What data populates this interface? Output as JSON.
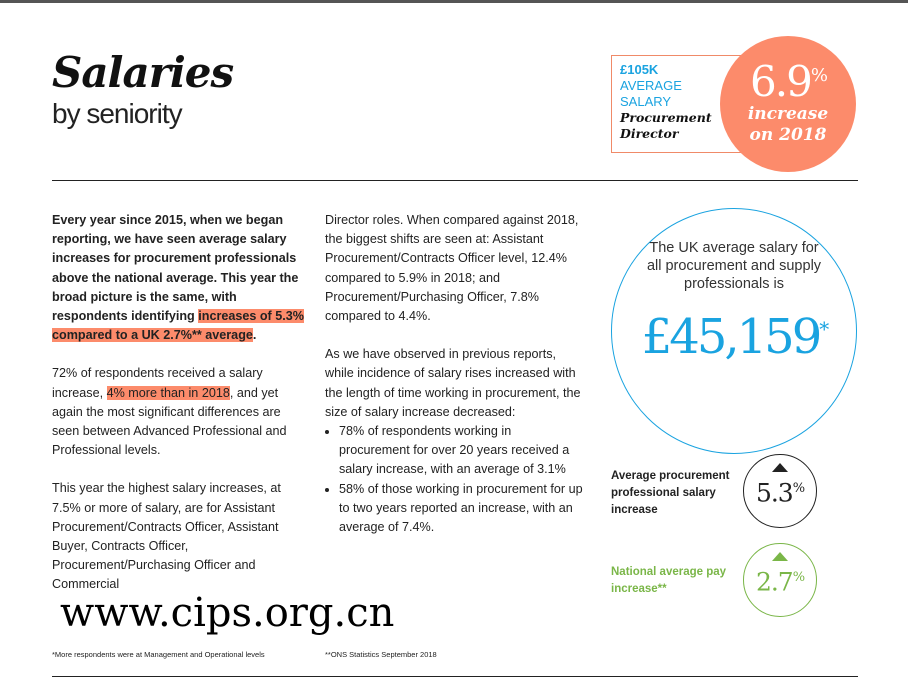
{
  "header": {
    "title": "Salaries",
    "subtitle": "by seniority"
  },
  "callout": {
    "amount": "£105K",
    "label1": "AVERAGE",
    "label2": "SALARY",
    "role1": "Procurement",
    "role2": "Director",
    "pct": "6.9",
    "pct_sign": "%",
    "inc1": "increase",
    "inc2": "on 2018",
    "accent": "#fc8b6b"
  },
  "col1": {
    "lead": "Every year since 2015, when we began reporting, we have seen average salary increases for procurement professionals above the national average. This year the broad picture is the same, with respondents identifying ",
    "lead_hl": "increases of 5.3% compared to a UK 2.7%** average",
    "lead_end": ".",
    "p2a": "72% of respondents received a salary increase, ",
    "p2_hl": "4% more than in 2018",
    "p2b": ", and yet again the most significant differences are seen between Advanced Professional and Professional levels.",
    "p3": "This year the highest salary increases, at 7.5% or more of salary, are for Assistant Procurement/Contracts Officer, Assistant Buyer, Contracts Officer, Procurement/Purchasing Officer and Commercial"
  },
  "col2": {
    "p1": "Director roles. When compared against 2018, the biggest shifts are seen at: Assistant Procurement/Contracts Officer level, 12.4% compared to 5.9% in 2018; and Procurement/Purchasing Officer, 7.8% compared to 4.4%.",
    "p2": "As we have observed in previous reports, while incidence of salary rises increased with the length of time working in procurement, the size of salary increase decreased:",
    "bullets": [
      "78% of respondents working in procurement for over 20 years received a salary increase, with an average of 3.1%",
      "58% of those working in procurement for up to two years reported an increase, with an average of 7.4%."
    ]
  },
  "uk": {
    "text": "The UK average salary for all procurement and supply professionals is",
    "value": "£45,159",
    "mark": "*",
    "color": "#1aa3e0"
  },
  "stats": [
    {
      "label": "Average procurement professional salary increase",
      "value": "5.3",
      "sign": "%",
      "direction": "up",
      "color": "#222222"
    },
    {
      "label": "National average pay increase**",
      "value": "2.7",
      "sign": "%",
      "direction": "up",
      "color": "#7ab648"
    }
  ],
  "footnotes": [
    "*More respondents were at Management and Operational levels",
    "**ONS Statistics September 2018"
  ],
  "watermark": "www.cips.org.cn"
}
